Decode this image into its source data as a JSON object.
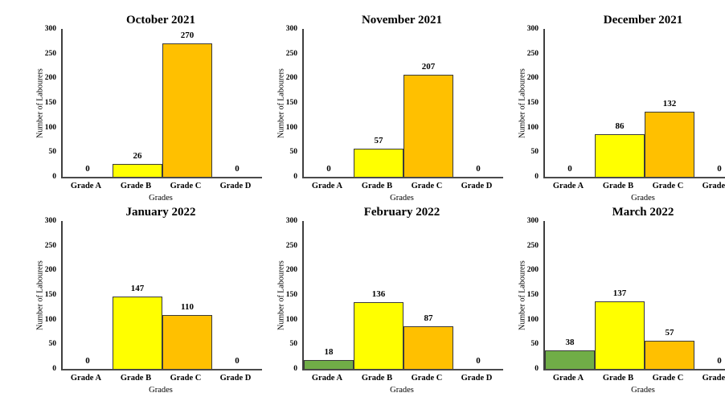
{
  "chart_data": {
    "type": "bar",
    "layout": "2x3 grid of monthly subplots",
    "categories": [
      "Grade A",
      "Grade B",
      "Grade C",
      "Grade D"
    ],
    "xlabel": "Grades",
    "ylabel": "Number of Labourers",
    "ylim": [
      0,
      300
    ],
    "ytick_step": 50,
    "grid": false,
    "legend": "none",
    "value_labels_shown": true,
    "category_colors": {
      "Grade A": "#70AD47",
      "Grade B": "#FFFF00",
      "Grade C": "#FFC000"
    },
    "bar_border_color": "#3a3a3a",
    "axis_color": "#3f3f3f",
    "background_color": "#ffffff",
    "charts": [
      {
        "title": "October 2021",
        "values": [
          0,
          26,
          270,
          0
        ]
      },
      {
        "title": "November 2021",
        "values": [
          0,
          57,
          207,
          0
        ]
      },
      {
        "title": "December 2021",
        "values": [
          0,
          86,
          132,
          0
        ]
      },
      {
        "title": "January 2022",
        "values": [
          0,
          147,
          110,
          0
        ]
      },
      {
        "title": "February 2022",
        "values": [
          18,
          136,
          87,
          0
        ]
      },
      {
        "title": "March 2022",
        "values": [
          38,
          137,
          57,
          0
        ]
      }
    ]
  }
}
